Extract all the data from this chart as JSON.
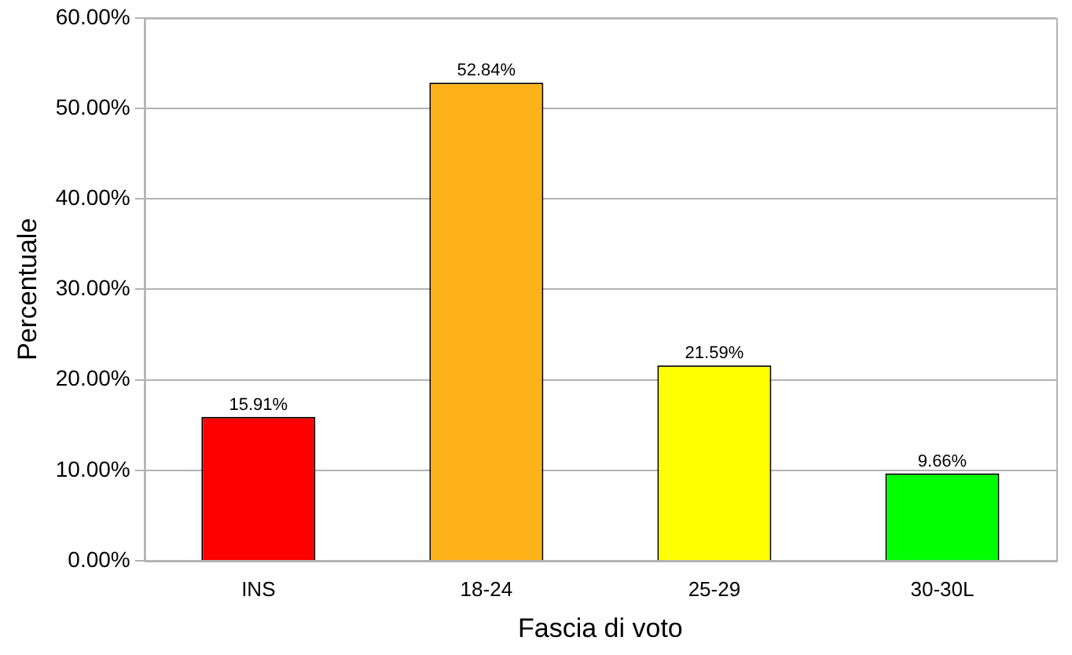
{
  "chart_data": {
    "type": "bar",
    "xlabel": "Fascia di voto",
    "ylabel": "Percentuale",
    "categories": [
      "INS",
      "18-24",
      "25-29",
      "30-30L"
    ],
    "values": [
      15.91,
      52.84,
      21.59,
      9.66
    ],
    "colors": [
      "#ff0000",
      "#ffb31a",
      "#ffff00",
      "#00ff00"
    ],
    "value_labels": [
      "15.91%",
      "52.84%",
      "21.59%",
      "9.66%"
    ],
    "ylim": [
      0,
      60
    ],
    "yticks": [
      {
        "value": 0,
        "label": "0.00%"
      },
      {
        "value": 10,
        "label": "10.00%"
      },
      {
        "value": 20,
        "label": "20.00%"
      },
      {
        "value": 30,
        "label": "30.00%"
      },
      {
        "value": 40,
        "label": "40.00%"
      },
      {
        "value": 50,
        "label": "50.00%"
      },
      {
        "value": 60,
        "label": "60.00%"
      }
    ],
    "grid": "y",
    "legend": false
  }
}
